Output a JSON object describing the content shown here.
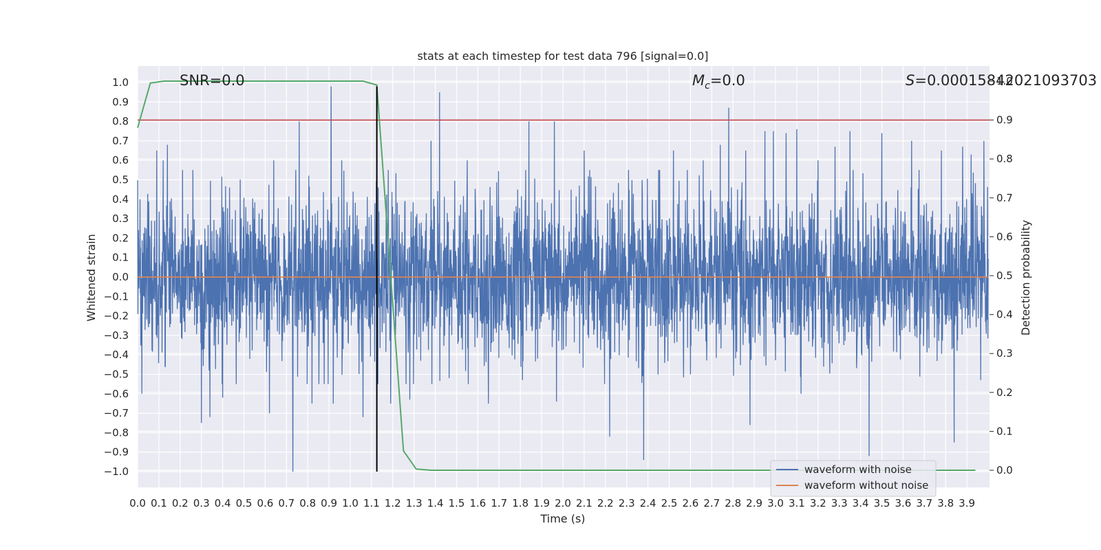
{
  "chart_data": {
    "type": "line",
    "title": "stats at each timestep for test data 796 [signal=0.0]",
    "xlabel": "Time (s)",
    "ylabel": "Whitened strain",
    "y2label": "Detection probability",
    "xlim": [
      0.0,
      4.0
    ],
    "ylim": [
      -1.1,
      1.1
    ],
    "y2lim": [
      -0.05,
      1.05
    ],
    "x_ticks": [
      "0.0",
      "0.1",
      "0.2",
      "0.3",
      "0.4",
      "0.5",
      "0.6",
      "0.7",
      "0.8",
      "0.9",
      "1.0",
      "1.1",
      "1.2",
      "1.3",
      "1.4",
      "1.5",
      "1.6",
      "1.7",
      "1.8",
      "1.9",
      "2.0",
      "2.1",
      "2.2",
      "2.3",
      "2.4",
      "2.5",
      "2.6",
      "2.7",
      "2.8",
      "2.9",
      "3.0",
      "3.1",
      "3.2",
      "3.3",
      "3.4",
      "3.5",
      "3.6",
      "3.7",
      "3.8",
      "3.9"
    ],
    "y_ticks": [
      "1.0",
      "0.9",
      "0.8",
      "0.7",
      "0.6",
      "0.5",
      "0.4",
      "0.3",
      "0.2",
      "0.1",
      "0.0",
      "−0.1",
      "−0.2",
      "−0.3",
      "−0.4",
      "−0.5",
      "−0.6",
      "−0.7",
      "−0.8",
      "−0.9",
      "−1.0"
    ],
    "y2_ticks": [
      "1.0",
      "0.9",
      "0.8",
      "0.7",
      "0.6",
      "0.5",
      "0.4",
      "0.3",
      "0.2",
      "0.1",
      "0.0"
    ],
    "grid": true,
    "legend_position": "lower-right",
    "annotations": {
      "snr": "SNR=0.0",
      "mc_symbol": "M",
      "mc_sub": "c",
      "mc_value": "=0.0",
      "s_symbol": "S",
      "s_value": "=0.00015842021093703"
    },
    "legend": [
      {
        "name": "waveform with noise",
        "color": "#4c72b0"
      },
      {
        "name": "waveform without noise",
        "color": "#dd8452"
      }
    ],
    "series": [
      {
        "name": "waveform with noise",
        "axis": "left",
        "color": "#4c72b0",
        "noise_sigma": 0.2,
        "spikes": [
          [
            0.02,
            -0.6
          ],
          [
            0.04,
            0.25
          ],
          [
            0.09,
            0.65
          ],
          [
            0.12,
            0.6
          ],
          [
            0.14,
            0.68
          ],
          [
            0.26,
            0.55
          ],
          [
            0.3,
            -0.75
          ],
          [
            0.34,
            -0.72
          ],
          [
            0.4,
            -0.62
          ],
          [
            0.62,
            -0.7
          ],
          [
            0.64,
            0.6
          ],
          [
            0.76,
            0.8
          ],
          [
            0.73,
            -1.0
          ],
          [
            0.82,
            -0.65
          ],
          [
            0.91,
            0.98
          ],
          [
            0.92,
            -0.65
          ],
          [
            0.96,
            0.6
          ],
          [
            1.06,
            -0.72
          ],
          [
            1.13,
            -0.55
          ],
          [
            1.19,
            -0.65
          ],
          [
            1.28,
            -0.63
          ],
          [
            1.38,
            0.7
          ],
          [
            1.42,
            0.95
          ],
          [
            1.55,
            0.6
          ],
          [
            1.65,
            -0.65
          ],
          [
            1.84,
            0.8
          ],
          [
            1.96,
            0.8
          ],
          [
            1.97,
            -0.64
          ],
          [
            2.1,
            0.65
          ],
          [
            2.22,
            -0.82
          ],
          [
            2.38,
            -0.94
          ],
          [
            2.45,
            0.55
          ],
          [
            2.52,
            0.65
          ],
          [
            2.6,
            -0.5
          ],
          [
            2.66,
            0.6
          ],
          [
            2.74,
            0.68
          ],
          [
            2.78,
            0.87
          ],
          [
            2.86,
            0.65
          ],
          [
            2.88,
            -0.76
          ],
          [
            2.95,
            0.75
          ],
          [
            2.99,
            0.75
          ],
          [
            3.05,
            0.74
          ],
          [
            3.1,
            0.76
          ],
          [
            3.12,
            -0.6
          ],
          [
            3.2,
            0.6
          ],
          [
            3.28,
            0.67
          ],
          [
            3.35,
            0.75
          ],
          [
            3.44,
            -0.92
          ],
          [
            3.5,
            0.74
          ],
          [
            3.64,
            0.7
          ],
          [
            3.78,
            0.65
          ],
          [
            3.84,
            -0.85
          ],
          [
            3.88,
            0.67
          ],
          [
            3.92,
            0.63
          ],
          [
            3.98,
            0.7
          ]
        ]
      },
      {
        "name": "waveform without noise",
        "axis": "left",
        "color": "#dd8452",
        "x": [
          0.0,
          4.0
        ],
        "y": [
          0.0,
          0.0
        ]
      },
      {
        "name": "detection probability",
        "axis": "right",
        "color": "#55a868",
        "x": [
          0.0,
          0.06,
          0.125,
          0.25,
          0.5,
          0.75,
          1.0,
          1.06,
          1.125,
          1.25,
          1.31,
          1.38,
          1.5,
          2.0,
          2.5,
          3.0,
          3.5,
          3.94
        ],
        "y": [
          0.88,
          0.995,
          1.0,
          1.0,
          1.0,
          1.0,
          1.0,
          1.0,
          0.99,
          0.05,
          0.003,
          0.0,
          0.0,
          0.0,
          0.0,
          0.0,
          0.0,
          0.0
        ]
      }
    ],
    "threshold": {
      "axis": "right",
      "y": 0.9,
      "color": "#c44e52"
    },
    "marker": {
      "x": 1.125,
      "y_from": -1.0,
      "y_to": 0.98,
      "color": "#000000"
    }
  }
}
